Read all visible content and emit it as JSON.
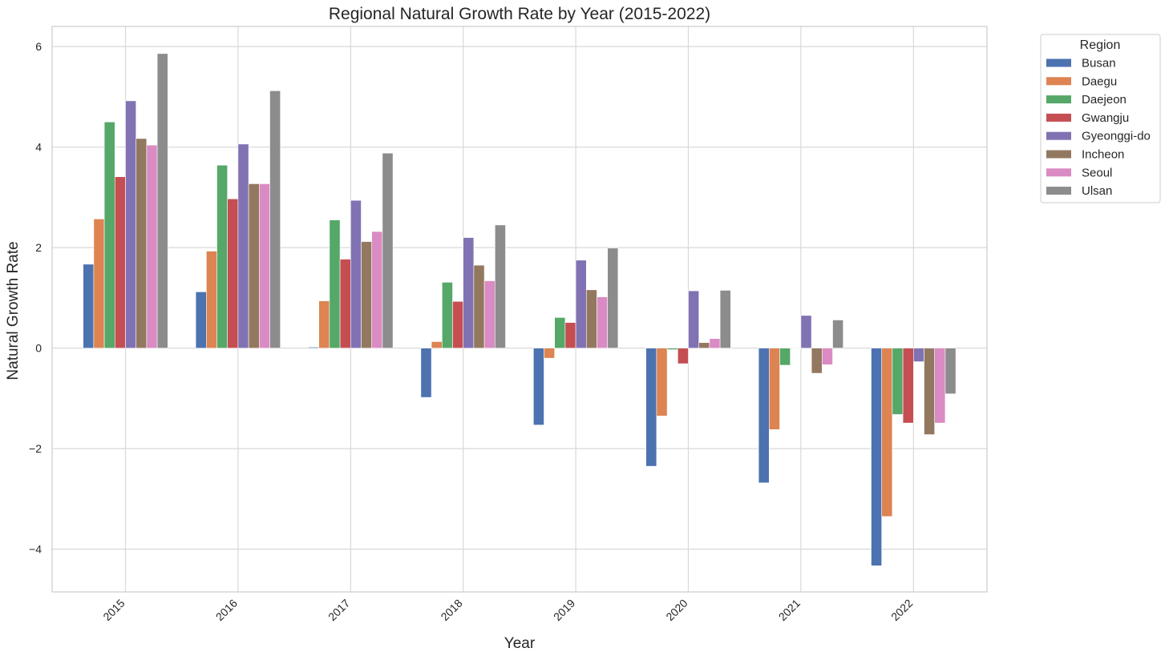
{
  "chart_data": {
    "type": "bar",
    "title": "Regional Natural Growth Rate by Year (2015-2022)",
    "xlabel": "Year",
    "ylabel": "Natural Growth Rate",
    "categories": [
      "2015",
      "2016",
      "2017",
      "2018",
      "2019",
      "2020",
      "2021",
      "2022"
    ],
    "yticks": [
      -4,
      -2,
      0,
      2,
      4,
      6
    ],
    "ytick_labels": [
      "−4",
      "−2",
      "0",
      "2",
      "4",
      "6"
    ],
    "ylim": [
      -4.85,
      6.4
    ],
    "grid": true,
    "legend": {
      "title": "Region",
      "placement": "outside-top-right"
    },
    "series": [
      {
        "name": "Busan",
        "color": "#4c72b0",
        "values": [
          1.67,
          1.12,
          0.02,
          -0.98,
          -1.53,
          -2.35,
          -2.68,
          -4.33
        ]
      },
      {
        "name": "Daegu",
        "color": "#dd8452",
        "values": [
          2.57,
          1.93,
          0.94,
          0.13,
          -0.2,
          -1.35,
          -1.62,
          -3.35
        ]
      },
      {
        "name": "Daejeon",
        "color": "#55a868",
        "values": [
          4.5,
          3.64,
          2.55,
          1.31,
          0.61,
          -0.03,
          -0.34,
          -1.32
        ]
      },
      {
        "name": "Gwangju",
        "color": "#c44e52",
        "values": [
          3.41,
          2.97,
          1.77,
          0.93,
          0.51,
          -0.31,
          0.0,
          -1.49
        ]
      },
      {
        "name": "Gyeonggi-do",
        "color": "#8172b3",
        "values": [
          4.92,
          4.06,
          2.94,
          2.2,
          1.75,
          1.14,
          0.65,
          -0.27
        ]
      },
      {
        "name": "Incheon",
        "color": "#937860",
        "values": [
          4.17,
          3.27,
          2.12,
          1.65,
          1.16,
          0.11,
          -0.5,
          -1.72
        ]
      },
      {
        "name": "Seoul",
        "color": "#da8bc3",
        "values": [
          4.04,
          3.27,
          2.32,
          1.34,
          1.02,
          0.19,
          -0.33,
          -1.49
        ]
      },
      {
        "name": "Ulsan",
        "color": "#8c8c8c",
        "values": [
          5.86,
          5.12,
          3.88,
          2.45,
          1.99,
          1.15,
          0.56,
          -0.91
        ]
      }
    ]
  }
}
